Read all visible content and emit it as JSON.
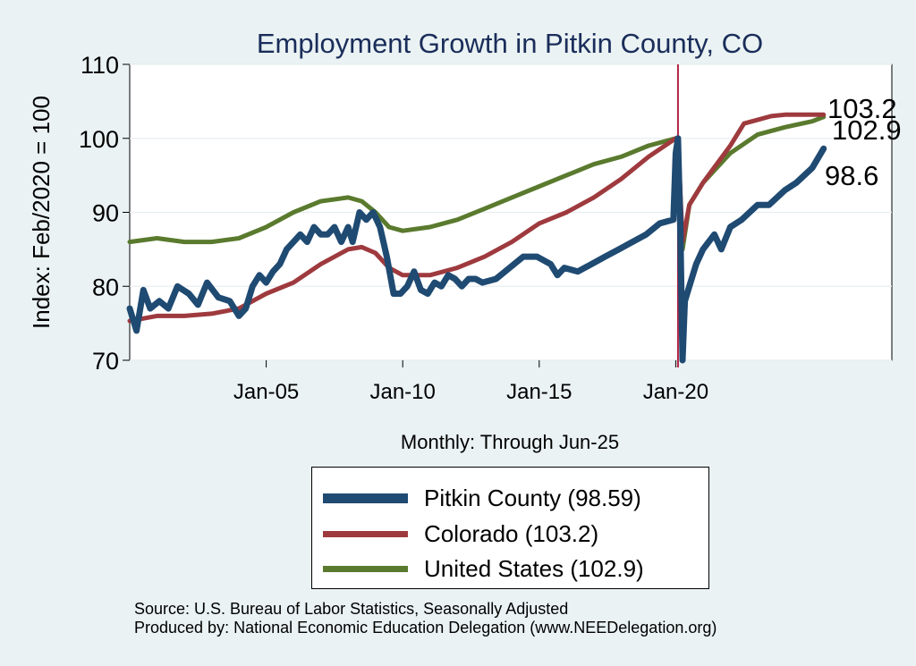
{
  "chart_data": {
    "type": "line",
    "title": "Employment Growth in Pitkin  County, CO",
    "xlabel": "Monthly: Through Jun-25",
    "ylabel": "Index: Feb/2020 = 100",
    "ylim": [
      70,
      110
    ],
    "y_ticks": [
      70,
      80,
      90,
      100,
      110
    ],
    "x_range": [
      "Jan-00",
      "Dec-27"
    ],
    "x_ticks": [
      "Jan-05",
      "Jan-10",
      "Jan-15",
      "Jan-20"
    ],
    "reference_line": {
      "x": "Feb-20",
      "color": "#b22244"
    },
    "grid": true,
    "legend_position": "bottom",
    "series": [
      {
        "name": "Pitkin  County (98.59)",
        "color": "#1f4a72",
        "end_label": "98.6",
        "points": [
          [
            "Jan-00",
            77
          ],
          [
            "Apr-00",
            74
          ],
          [
            "Jul-00",
            79.5
          ],
          [
            "Oct-00",
            77
          ],
          [
            "Feb-01",
            78
          ],
          [
            "Jun-01",
            77
          ],
          [
            "Oct-01",
            80
          ],
          [
            "Mar-02",
            79
          ],
          [
            "Jul-02",
            77.5
          ],
          [
            "Nov-02",
            80.5
          ],
          [
            "Apr-03",
            78.5
          ],
          [
            "Sep-03",
            78
          ],
          [
            "Jan-04",
            76
          ],
          [
            "Apr-04",
            77
          ],
          [
            "Jul-04",
            80
          ],
          [
            "Oct-04",
            81.5
          ],
          [
            "Jan-05",
            80.5
          ],
          [
            "Apr-05",
            82
          ],
          [
            "Jul-05",
            83
          ],
          [
            "Oct-05",
            85
          ],
          [
            "Jan-06",
            86
          ],
          [
            "Apr-06",
            87
          ],
          [
            "Jul-06",
            86
          ],
          [
            "Oct-06",
            88
          ],
          [
            "Jan-07",
            87
          ],
          [
            "Apr-07",
            87
          ],
          [
            "Jul-07",
            88
          ],
          [
            "Oct-07",
            86
          ],
          [
            "Jan-08",
            88
          ],
          [
            "Mar-08",
            86
          ],
          [
            "Jun-08",
            90
          ],
          [
            "Sep-08",
            89
          ],
          [
            "Dec-08",
            90
          ],
          [
            "Mar-09",
            88
          ],
          [
            "Jun-09",
            84
          ],
          [
            "Sep-09",
            79
          ],
          [
            "Dec-09",
            79
          ],
          [
            "Mar-10",
            80
          ],
          [
            "Jun-10",
            82
          ],
          [
            "Sep-10",
            79.5
          ],
          [
            "Dec-10",
            79
          ],
          [
            "Mar-11",
            80.5
          ],
          [
            "Jun-11",
            80
          ],
          [
            "Sep-11",
            81.5
          ],
          [
            "Dec-11",
            81
          ],
          [
            "Mar-12",
            80
          ],
          [
            "Jun-12",
            81
          ],
          [
            "Sep-12",
            81
          ],
          [
            "Dec-12",
            80.5
          ],
          [
            "Jun-13",
            81
          ],
          [
            "Dec-13",
            82.5
          ],
          [
            "Jun-14",
            84
          ],
          [
            "Dec-14",
            84
          ],
          [
            "Jun-15",
            83
          ],
          [
            "Sep-15",
            81.5
          ],
          [
            "Dec-15",
            82.5
          ],
          [
            "Jun-16",
            82
          ],
          [
            "Dec-16",
            83
          ],
          [
            "Jun-17",
            84
          ],
          [
            "Dec-17",
            85
          ],
          [
            "Jun-18",
            86
          ],
          [
            "Dec-18",
            87
          ],
          [
            "Jun-19",
            88.5
          ],
          [
            "Dec-19",
            89
          ],
          [
            "Jan-20",
            98
          ],
          [
            "Feb-20",
            100
          ],
          [
            "Mar-20",
            88
          ],
          [
            "Apr-20",
            70
          ],
          [
            "May-20",
            78
          ],
          [
            "Jul-20",
            80
          ],
          [
            "Oct-20",
            83
          ],
          [
            "Jan-21",
            85
          ],
          [
            "Jun-21",
            87
          ],
          [
            "Sep-21",
            85
          ],
          [
            "Jan-22",
            88
          ],
          [
            "Jun-22",
            89
          ],
          [
            "Jan-23",
            91
          ],
          [
            "Jun-23",
            91
          ],
          [
            "Jan-24",
            93
          ],
          [
            "Jun-24",
            94
          ],
          [
            "Jan-25",
            96
          ],
          [
            "Jun-25",
            98.6
          ]
        ]
      },
      {
        "name": "Colorado (103.2)",
        "color": "#9e3a3e",
        "end_label": "103.2",
        "points": [
          [
            "Jan-00",
            75.3
          ],
          [
            "Jan-01",
            76
          ],
          [
            "Jan-02",
            76
          ],
          [
            "Jan-03",
            76.3
          ],
          [
            "Jan-04",
            77
          ],
          [
            "Jan-05",
            79
          ],
          [
            "Jan-06",
            80.5
          ],
          [
            "Jan-07",
            83
          ],
          [
            "Jan-08",
            85
          ],
          [
            "Jul-08",
            85.3
          ],
          [
            "Jan-09",
            84.5
          ],
          [
            "Jul-09",
            82.5
          ],
          [
            "Jan-10",
            81.5
          ],
          [
            "Jan-11",
            81.5
          ],
          [
            "Jan-12",
            82.5
          ],
          [
            "Jan-13",
            84
          ],
          [
            "Jan-14",
            86
          ],
          [
            "Jan-15",
            88.5
          ],
          [
            "Jan-16",
            90
          ],
          [
            "Jan-17",
            92
          ],
          [
            "Jan-18",
            94.5
          ],
          [
            "Jan-19",
            97.5
          ],
          [
            "Jan-20",
            100
          ],
          [
            "Feb-20",
            100
          ],
          [
            "Apr-20",
            86
          ],
          [
            "Jul-20",
            91
          ],
          [
            "Jan-21",
            94
          ],
          [
            "Jan-22",
            99
          ],
          [
            "Jul-22",
            102
          ],
          [
            "Jan-23",
            102.5
          ],
          [
            "Jul-23",
            103
          ],
          [
            "Jan-24",
            103.2
          ],
          [
            "Jun-25",
            103.2
          ]
        ]
      },
      {
        "name": "United States (102.9)",
        "color": "#5a7a2e",
        "end_label": "102.9",
        "points": [
          [
            "Jan-00",
            86
          ],
          [
            "Jan-01",
            86.5
          ],
          [
            "Jan-02",
            86
          ],
          [
            "Jan-03",
            86
          ],
          [
            "Jan-04",
            86.5
          ],
          [
            "Jan-05",
            88
          ],
          [
            "Jan-06",
            90
          ],
          [
            "Jan-07",
            91.5
          ],
          [
            "Jan-08",
            92
          ],
          [
            "Jul-08",
            91.5
          ],
          [
            "Jan-09",
            90
          ],
          [
            "Jul-09",
            88
          ],
          [
            "Jan-10",
            87.5
          ],
          [
            "Jan-11",
            88
          ],
          [
            "Jan-12",
            89
          ],
          [
            "Jan-13",
            90.5
          ],
          [
            "Jan-14",
            92
          ],
          [
            "Jan-15",
            93.5
          ],
          [
            "Jan-16",
            95
          ],
          [
            "Jan-17",
            96.5
          ],
          [
            "Jan-18",
            97.5
          ],
          [
            "Jan-19",
            99
          ],
          [
            "Jan-20",
            100
          ],
          [
            "Feb-20",
            100
          ],
          [
            "Apr-20",
            85
          ],
          [
            "Jul-20",
            91
          ],
          [
            "Jan-21",
            94
          ],
          [
            "Jan-22",
            98
          ],
          [
            "Jan-23",
            100.5
          ],
          [
            "Jan-24",
            101.5
          ],
          [
            "Jan-25",
            102.3
          ],
          [
            "Jun-25",
            102.9
          ]
        ]
      }
    ]
  },
  "source": {
    "line1": "Source: U.S. Bureau of Labor Statistics, Seasonally Adjusted",
    "line2": "Produced by: National Economic Education Delegation (www.NEEDelegation.org)"
  }
}
